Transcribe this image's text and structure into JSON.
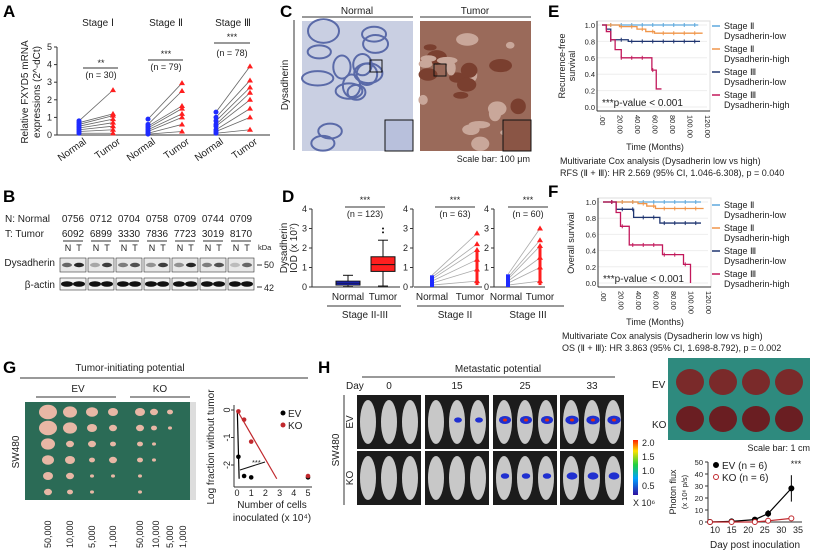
{
  "panels": {
    "A": "A",
    "B": "B",
    "C": "C",
    "D": "D",
    "E": "E",
    "F": "F",
    "G": "G",
    "H": "H"
  },
  "colors": {
    "normal": "#1f2bff",
    "tumor": "#ff1f1f",
    "km_II_low": "#5da9dd",
    "km_II_high": "#f0964a",
    "km_III_low": "#1f3570",
    "km_III_high": "#c2185b",
    "ev": "#000000",
    "ko": "#c0282d"
  },
  "panelA": {
    "ylabel_1": "Relative FXYD5 mRNA",
    "ylabel_2": "expressions (2^-dCt)",
    "groups": [
      {
        "title": "Stage Ⅰ",
        "sig": "**",
        "n": "(n = 30)"
      },
      {
        "title": "Stage Ⅱ",
        "sig": "***",
        "n": "(n = 79)"
      },
      {
        "title": "Stage Ⅲ",
        "sig": "***",
        "n": "(n = 78)"
      }
    ],
    "xticks": [
      "Normal",
      "Tumor"
    ]
  },
  "panelB": {
    "normal_label": "N: Normal",
    "tumor_label": "T: Tumor",
    "normal_ids": [
      "0756",
      "0712",
      "0704",
      "0758",
      "0709",
      "0744",
      "0709"
    ],
    "tumor_ids": [
      "6092",
      "6899",
      "3330",
      "7836",
      "7723",
      "3019",
      "8170"
    ],
    "lane_n": "N",
    "lane_t": "T",
    "kda": "kDa",
    "row1": "Dysadherin",
    "row2": "β-actin",
    "mw1": "50",
    "mw2": "42",
    "dys_intensity": [
      [
        0.6,
        0.9
      ],
      [
        0.3,
        0.8
      ],
      [
        0.5,
        0.7
      ],
      [
        0.4,
        0.8
      ],
      [
        0.4,
        0.9
      ],
      [
        0.5,
        0.7
      ],
      [
        0.2,
        0.6
      ]
    ]
  },
  "panelC": {
    "normal": "Normal",
    "tumor": "Tumor",
    "ylabel": "Dysadherin",
    "scale": "Scale bar: 100 μm"
  },
  "panelD": {
    "ylabel_1": "Dysadherin",
    "ylabel_2": "IOD (x 10⁷)",
    "box": {
      "sig": "***",
      "n": "(n = 123)",
      "group": "Stage II-III"
    },
    "pairs": [
      {
        "sig": "***",
        "n": "(n = 63)",
        "group": "Stage II"
      },
      {
        "sig": "***",
        "n": "(n = 60)",
        "group": "Stage III"
      }
    ],
    "xticks": [
      "Normal",
      "Tumor"
    ]
  },
  "km": {
    "xlabel": "Time (Months)",
    "pvalue": "***p-value < 0.001",
    "legend": [
      {
        "l1": "Stage Ⅱ",
        "l2": "Dysadherin-low"
      },
      {
        "l1": "Stage Ⅱ",
        "l2": "Dysadherin-high"
      },
      {
        "l1": "Stage Ⅲ",
        "l2": "Dysadherin-low"
      },
      {
        "l1": "Stage Ⅲ",
        "l2": "Dysadherin-high"
      }
    ],
    "E": {
      "ylabel_1": "Recurrence-free",
      "ylabel_2": "survival",
      "cox_1": "Multivariate Cox analysis  (Dysadherin low vs high)",
      "cox_2": "RFS (Ⅱ + Ⅲ): HR 2.569 (95% CI, 1.046-6.308), p = 0.040"
    },
    "F": {
      "ylabel_1": "Overall survival",
      "cox_1": "Multivariate Cox analysis  (Dysadherin low vs high)",
      "cox_2": "OS (Ⅱ + Ⅲ): HR 3.863 (95% CI, 1.698-8.792), p = 0.002"
    }
  },
  "panelG": {
    "title": "Tumor-initiating potential",
    "ev": "EV",
    "ko": "KO",
    "cell_line": "SW480",
    "doses": [
      "50,000",
      "10,000",
      "5,000",
      "1,000",
      "50,000",
      "10,000",
      "5,000",
      "1,000"
    ],
    "ylabel": "Log fraction without tumor",
    "xlabel_1": "Number of cells",
    "xlabel_2": "inoculated (x 10⁴)",
    "sig": "***"
  },
  "panelH": {
    "title": "Metastatic potential",
    "day": "Day",
    "days": [
      "0",
      "15",
      "25",
      "33"
    ],
    "cell_line": "SW480",
    "ev": "EV",
    "ko": "KO",
    "colorbar": [
      "2.0",
      "1.5",
      "1.0",
      "0.5"
    ],
    "colorbar_unit": "X 10⁶",
    "scale": "Scale bar: 1 cm",
    "ylabel_1": "Photon flux",
    "ylabel_2": "(x 10⁶ p/s)",
    "xlabel": "Day post inoculation",
    "legend_ev": "EV (n = 6)",
    "legend_ko": "KO (n = 6)",
    "sig": "***"
  },
  "chart_data": [
    {
      "id": "A",
      "type": "scatter",
      "title": "",
      "ylabel": "Relative FXYD5 mRNA expressions (2^-dCt)",
      "ylim": [
        0,
        5
      ],
      "yticks": [
        0,
        1,
        2,
        3,
        4,
        5
      ],
      "series": [
        {
          "group": "Stage Ⅰ",
          "normal": [
            0.8,
            0.7,
            0.6,
            0.5,
            0.4,
            0.3,
            0.2,
            0.1
          ],
          "tumor": [
            2.55,
            1.2,
            1.1,
            0.9,
            0.7,
            0.5,
            0.3,
            0.1
          ]
        },
        {
          "group": "Stage Ⅱ",
          "normal": [
            0.9,
            0.6,
            0.5,
            0.4,
            0.3,
            0.2,
            0.1,
            0.05
          ],
          "tumor": [
            2.95,
            2.5,
            1.65,
            1.5,
            1.2,
            1.0,
            0.6,
            0.2
          ]
        },
        {
          "group": "Stage Ⅲ",
          "normal": [
            1.3,
            1.0,
            0.8,
            0.6,
            0.5,
            0.3,
            0.2,
            0.1
          ],
          "tumor": [
            3.9,
            3.1,
            2.7,
            2.4,
            2.0,
            1.5,
            1.0,
            0.3
          ]
        }
      ]
    },
    {
      "id": "D",
      "type": "box",
      "ylabel": "Dysadherin IOD (x 10⁷)",
      "ylim": [
        0,
        4
      ],
      "yticks": [
        0,
        1,
        2,
        3,
        4
      ],
      "box": {
        "normal": {
          "min": 0.02,
          "q1": 0.1,
          "median": 0.2,
          "q3": 0.3,
          "max": 0.6
        },
        "tumor": {
          "min": 0.05,
          "q1": 0.8,
          "median": 1.15,
          "q3": 1.55,
          "max": 2.4,
          "outliers": [
            2.8,
            3.0
          ]
        }
      },
      "paired": [
        {
          "group": "Stage II",
          "normal": [
            0.6,
            0.5,
            0.4,
            0.3,
            0.2,
            0.1
          ],
          "tumor": [
            2.75,
            2.2,
            1.9,
            1.4,
            0.9,
            0.3
          ]
        },
        {
          "group": "Stage III",
          "normal": [
            0.65,
            0.5,
            0.4,
            0.3,
            0.2,
            0.1
          ],
          "tumor": [
            3.0,
            2.4,
            2.1,
            1.5,
            1.0,
            0.3
          ]
        }
      ]
    },
    {
      "id": "E",
      "type": "line",
      "ylabel": "Recurrence-free survival",
      "xlabel": "Time (Months)",
      "xlim": [
        0,
        120
      ],
      "ylim": [
        0,
        1
      ],
      "xticks": [
        ".00",
        "20.00",
        "40.00",
        "60.00",
        "80.00",
        "100.00",
        "120.00"
      ],
      "yticks": [
        "0.0",
        "0.2",
        "0.4",
        "0.6",
        "0.8",
        "1.0"
      ],
      "series": [
        {
          "name": "Stage Ⅱ Dysadherin-low",
          "points": [
            [
              0,
              1
            ],
            [
              110,
              1
            ]
          ]
        },
        {
          "name": "Stage Ⅱ Dysadherin-high",
          "points": [
            [
              0,
              1
            ],
            [
              20,
              0.98
            ],
            [
              40,
              0.95
            ],
            [
              50,
              0.92
            ],
            [
              60,
              0.9
            ],
            [
              115,
              0.9
            ]
          ]
        },
        {
          "name": "Stage Ⅲ Dysadherin-low",
          "points": [
            [
              0,
              1
            ],
            [
              5,
              0.95
            ],
            [
              10,
              0.82
            ],
            [
              30,
              0.8
            ],
            [
              112,
              0.8
            ]
          ]
        },
        {
          "name": "Stage Ⅲ Dysadherin-high",
          "points": [
            [
              0,
              1
            ],
            [
              5,
              0.92
            ],
            [
              10,
              0.82
            ],
            [
              15,
              0.7
            ],
            [
              22,
              0.6
            ],
            [
              55,
              0.6
            ],
            [
              57,
              0.45
            ],
            [
              62,
              0.22
            ],
            [
              68,
              0.22
            ]
          ]
        }
      ]
    },
    {
      "id": "F",
      "type": "line",
      "ylabel": "Overall survival",
      "xlabel": "Time (Months)",
      "xlim": [
        0,
        120
      ],
      "ylim": [
        0,
        1
      ],
      "xticks": [
        ".00",
        "20.00",
        "40.00",
        "60.00",
        "80.00",
        "100.00",
        "120.00"
      ],
      "yticks": [
        "0.0",
        "0.2",
        "0.4",
        "0.6",
        "0.8",
        "1.0"
      ],
      "series": [
        {
          "name": "Stage Ⅱ Dysadherin-low",
          "points": [
            [
              0,
              1
            ],
            [
              112,
              1
            ]
          ]
        },
        {
          "name": "Stage Ⅱ Dysadherin-high",
          "points": [
            [
              0,
              1
            ],
            [
              40,
              0.98
            ],
            [
              50,
              0.95
            ],
            [
              60,
              0.92
            ],
            [
              115,
              0.92
            ]
          ]
        },
        {
          "name": "Stage Ⅲ Dysadherin-low",
          "points": [
            [
              0,
              1
            ],
            [
              15,
              0.91
            ],
            [
              35,
              0.81
            ],
            [
              65,
              0.74
            ],
            [
              112,
              0.74
            ]
          ]
        },
        {
          "name": "Stage Ⅲ Dysadherin-high",
          "points": [
            [
              0,
              1
            ],
            [
              15,
              0.87
            ],
            [
              20,
              0.7
            ],
            [
              30,
              0.47
            ],
            [
              60,
              0.47
            ],
            [
              68,
              0.35
            ],
            [
              92,
              0.23
            ],
            [
              100,
              0
            ]
          ]
        }
      ]
    },
    {
      "id": "G",
      "type": "scatter",
      "ylabel": "Log fraction without tumor",
      "xlabel": "Number of cells inoculated (x 10⁴)",
      "xlim": [
        0,
        5
      ],
      "ylim": [
        -2.5,
        0
      ],
      "xticks": [
        0,
        1,
        2,
        3,
        4,
        5
      ],
      "yticks": [
        0,
        -1,
        -2
      ],
      "series": [
        {
          "name": "EV",
          "points": [
            [
              0.1,
              -1.7
            ],
            [
              0.5,
              -2.4
            ],
            [
              1,
              -2.45
            ],
            [
              5,
              -2.45
            ]
          ],
          "fit": [
            [
              0.02,
              0
            ],
            [
              0.15,
              -2.5
            ]
          ]
        },
        {
          "name": "KO",
          "points": [
            [
              0.1,
              -0.05
            ],
            [
              0.5,
              -0.35
            ],
            [
              1,
              -1.15
            ],
            [
              5,
              -2.4
            ]
          ],
          "fit": [
            [
              0,
              0
            ],
            [
              2.8,
              -2.5
            ]
          ]
        }
      ]
    },
    {
      "id": "H",
      "type": "line",
      "ylabel": "Photon flux (x 10⁶ p/s)",
      "xlabel": "Day post inoculation",
      "xlim": [
        8,
        35
      ],
      "ylim": [
        0,
        50
      ],
      "xticks": [
        10,
        15,
        20,
        25,
        30,
        35
      ],
      "yticks": [
        0,
        10,
        20,
        30,
        40,
        50
      ],
      "series": [
        {
          "name": "EV (n = 6)",
          "x": [
            8,
            15,
            22,
            26,
            33
          ],
          "y": [
            0,
            0.5,
            2,
            7,
            28
          ],
          "err": [
            0,
            0.3,
            1,
            3,
            11
          ]
        },
        {
          "name": "KO (n = 6)",
          "x": [
            8,
            15,
            22,
            26,
            33
          ],
          "y": [
            0,
            0,
            0,
            1,
            3
          ],
          "err": [
            0,
            0,
            0,
            0.5,
            1
          ]
        }
      ]
    }
  ]
}
